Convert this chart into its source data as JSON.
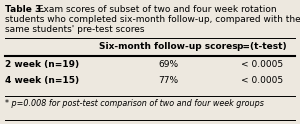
{
  "title_bold": "Table 3.",
  "title_normal": " Exam scores of subset of two and four week rotation\nstudents who completed six-month follow-up, compared with the\nsame students’ pre-test scores",
  "col_headers": [
    "",
    "Six-month follow-up scores",
    "p=(t-test)"
  ],
  "rows": [
    [
      "2 week (n=19)",
      "69%",
      "< 0.0005"
    ],
    [
      "4 week (n=15)",
      "77%",
      "< 0.0005"
    ]
  ],
  "footnote": "* p=0.008 for post-test comparison of two and four week groups",
  "background_color": "#ede8df"
}
